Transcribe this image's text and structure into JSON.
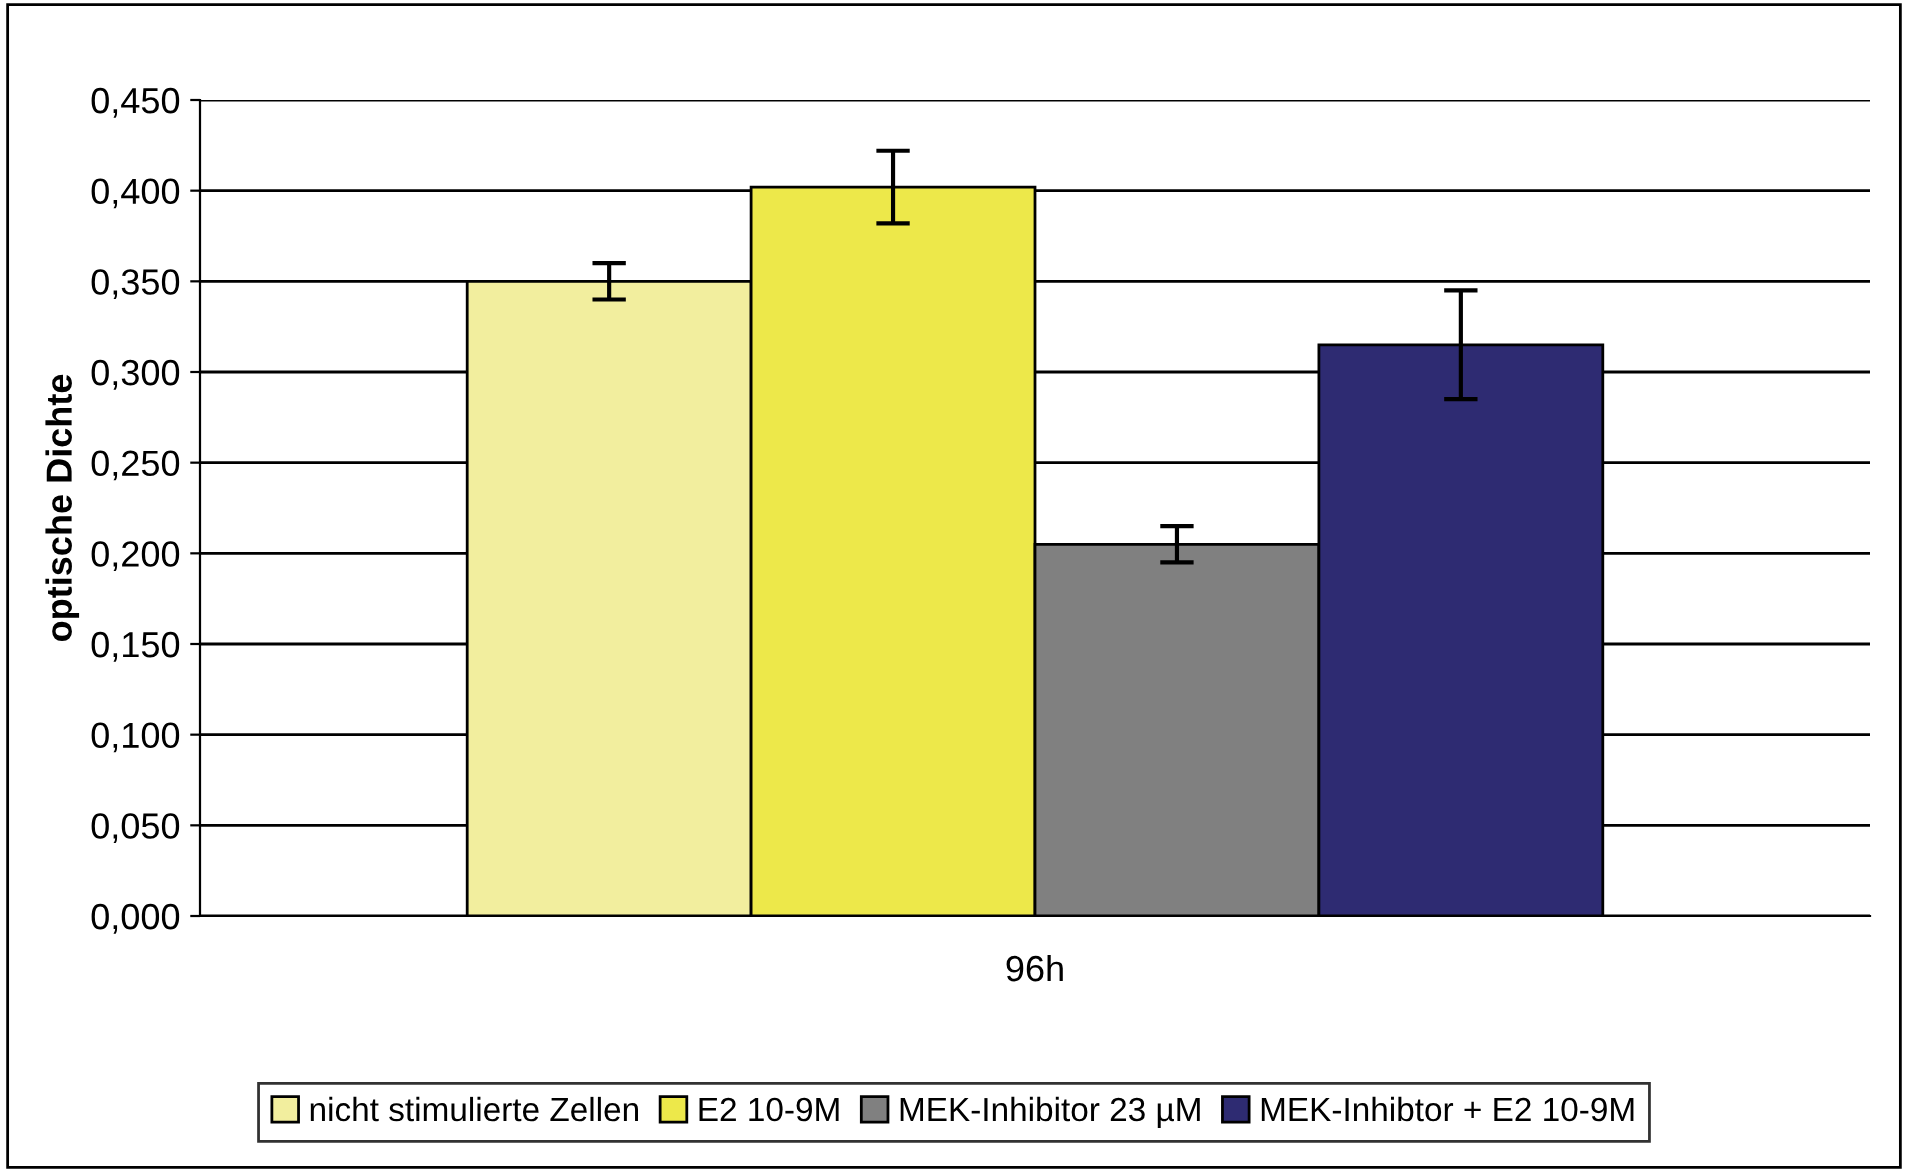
{
  "chart_data": {
    "type": "bar",
    "ylabel": "optische Dichte",
    "categories": [
      "96h"
    ],
    "series": [
      {
        "name": "nicht stimulierte Zellen",
        "color": "#f2ee9e",
        "values": [
          0.35
        ],
        "errors": [
          0.01
        ]
      },
      {
        "name": "E2 10-9M",
        "color": "#ede84a",
        "values": [
          0.402
        ],
        "errors": [
          0.02
        ]
      },
      {
        "name": "MEK-Inhibitor 23 µM",
        "color": "#808080",
        "values": [
          0.205
        ],
        "errors": [
          0.01
        ]
      },
      {
        "name": "MEK-Inhibtor + E2 10-9M",
        "color": "#2e2b72",
        "values": [
          0.315
        ],
        "errors": [
          0.03
        ]
      }
    ],
    "ylim": [
      0,
      0.45
    ],
    "yticks": [
      {
        "value": 0,
        "label": "0,000"
      },
      {
        "value": 0.05,
        "label": "0,050"
      },
      {
        "value": 0.1,
        "label": "0,100"
      },
      {
        "value": 0.15,
        "label": "0,150"
      },
      {
        "value": 0.2,
        "label": "0,200"
      },
      {
        "value": 0.25,
        "label": "0,250"
      },
      {
        "value": 0.3,
        "label": "0,300"
      },
      {
        "value": 0.35,
        "label": "0,350"
      },
      {
        "value": 0.4,
        "label": "0,400"
      },
      {
        "value": 0.45,
        "label": "0,450"
      }
    ],
    "grid": "y",
    "legend": "bottom"
  }
}
